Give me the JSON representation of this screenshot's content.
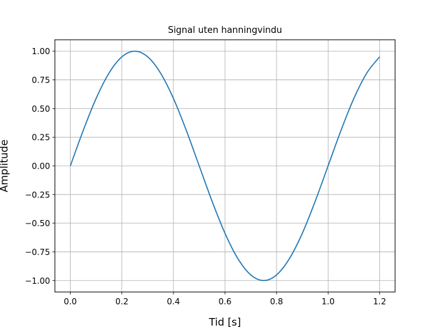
{
  "chart_data": {
    "type": "line",
    "title": "Signal uten hanningvindu",
    "xlabel": "Tid [s]",
    "ylabel": "Amplitude",
    "xlim": [
      -0.06,
      1.26
    ],
    "ylim": [
      -1.1,
      1.1
    ],
    "x_ticks": [
      0.0,
      0.2,
      0.4,
      0.6,
      0.8,
      1.0,
      1.2
    ],
    "x_tick_labels": [
      "0.0",
      "0.2",
      "0.4",
      "0.6",
      "0.8",
      "1.0",
      "1.2"
    ],
    "y_ticks": [
      -1.0,
      -0.75,
      -0.5,
      -0.25,
      0.0,
      0.25,
      0.5,
      0.75,
      1.0
    ],
    "y_tick_labels": [
      "−1.00",
      "−0.75",
      "−0.50",
      "−0.25",
      "0.00",
      "0.25",
      "0.50",
      "0.75",
      "1.00"
    ],
    "grid": true,
    "series": [
      {
        "color": "#1f77b4",
        "x": [
          0.0,
          0.05,
          0.1,
          0.15,
          0.2,
          0.25,
          0.3,
          0.35,
          0.4,
          0.45,
          0.5,
          0.55,
          0.6,
          0.65,
          0.7,
          0.75,
          0.8,
          0.85,
          0.9,
          0.95,
          1.0,
          1.05,
          1.1,
          1.15,
          1.2
        ],
        "y": [
          0.0,
          0.309,
          0.588,
          0.809,
          0.951,
          1.0,
          0.951,
          0.809,
          0.588,
          0.309,
          0.0,
          -0.309,
          -0.588,
          -0.809,
          -0.951,
          -1.0,
          -0.951,
          -0.809,
          -0.588,
          -0.309,
          0.0,
          0.309,
          0.588,
          0.809,
          0.951
        ]
      }
    ]
  }
}
